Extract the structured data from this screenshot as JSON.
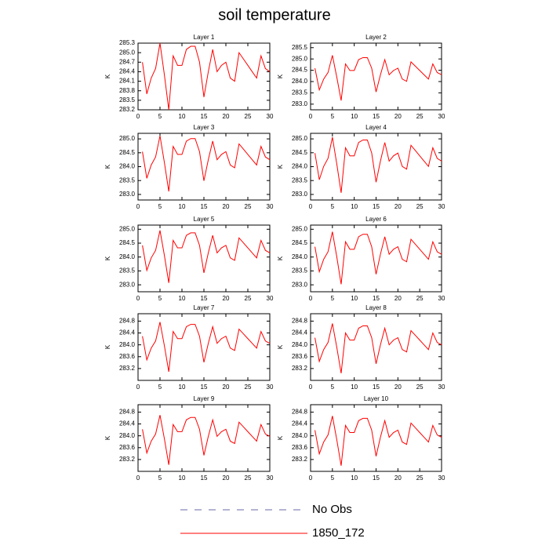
{
  "title": "soil temperature",
  "legend": [
    {
      "name": "No Obs",
      "color": "#6a6aa8",
      "dash": true
    },
    {
      "name": "1850_172",
      "color": "#ff0000",
      "dash": false
    }
  ],
  "chart_data": [
    {
      "type": "line",
      "title": "Layer 1",
      "ylabel": "K",
      "color": "#ff0000",
      "x": [
        1,
        2,
        3,
        4,
        5,
        6,
        7,
        8,
        9,
        10,
        11,
        12,
        13,
        14,
        15,
        16,
        17,
        18,
        19,
        20,
        21,
        22,
        23,
        24,
        25,
        26,
        27,
        28,
        29,
        30
      ],
      "values": [
        284.7,
        283.7,
        284.2,
        284.5,
        285.3,
        284.3,
        283.2,
        284.9,
        284.6,
        284.6,
        285.1,
        285.2,
        285.2,
        284.7,
        283.6,
        284.4,
        285.1,
        284.4,
        284.6,
        284.7,
        284.2,
        284.1,
        285.0,
        284.8,
        284.6,
        284.4,
        284.2,
        284.9,
        284.5,
        284.4
      ],
      "xlim": [
        0,
        30
      ],
      "xticks": [
        0,
        5,
        10,
        15,
        20,
        25,
        30
      ],
      "ylim": [
        283.2,
        285.3
      ],
      "yticks": [
        283.2,
        283.5,
        283.8,
        284.1,
        284.4,
        284.7,
        {
          "value": 285,
          "label": "285.0"
        },
        285.3
      ]
    },
    {
      "type": "line",
      "title": "Layer 2",
      "ylabel": "K",
      "color": "#ff0000",
      "x": [
        1,
        2,
        3,
        4,
        5,
        6,
        7,
        8,
        9,
        10,
        11,
        12,
        13,
        14,
        15,
        16,
        17,
        18,
        19,
        20,
        21,
        22,
        23,
        24,
        25,
        26,
        27,
        28,
        29,
        30
      ],
      "values": [
        284.59,
        283.63,
        284.11,
        284.4,
        285.16,
        284.2,
        283.16,
        284.78,
        284.49,
        284.49,
        284.97,
        285.06,
        285.06,
        284.59,
        283.54,
        284.3,
        284.97,
        284.3,
        284.49,
        284.59,
        284.11,
        284.01,
        284.87,
        284.68,
        284.49,
        284.3,
        284.11,
        284.78,
        284.4,
        284.3
      ],
      "xlim": [
        0,
        30
      ],
      "xticks": [
        0,
        5,
        10,
        15,
        20,
        25,
        30
      ],
      "ylim": [
        282.75,
        285.7
      ],
      "yticks": [
        {
          "value": 283,
          "label": "283.0"
        },
        283.5,
        {
          "value": 284,
          "label": "284.0"
        },
        284.5,
        {
          "value": 285,
          "label": "285.0"
        },
        285.5
      ]
    },
    {
      "type": "line",
      "title": "Layer 3",
      "ylabel": "K",
      "color": "#ff0000",
      "x": [
        1,
        2,
        3,
        4,
        5,
        6,
        7,
        8,
        9,
        10,
        11,
        12,
        13,
        14,
        15,
        16,
        17,
        18,
        19,
        20,
        21,
        22,
        23,
        24,
        25,
        26,
        27,
        28,
        29,
        30
      ],
      "values": [
        284.54,
        283.58,
        284.06,
        284.35,
        285.11,
        284.15,
        283.11,
        284.73,
        284.44,
        284.44,
        284.92,
        285.01,
        285.01,
        284.54,
        283.49,
        284.25,
        284.92,
        284.25,
        284.44,
        284.54,
        284.06,
        283.96,
        284.82,
        284.63,
        284.44,
        284.25,
        284.06,
        284.73,
        284.35,
        284.25
      ],
      "xlim": [
        0,
        30
      ],
      "xticks": [
        0,
        5,
        10,
        15,
        20,
        25,
        30
      ],
      "ylim": [
        282.8,
        285.2
      ],
      "yticks": [
        {
          "value": 283,
          "label": "283.0"
        },
        283.5,
        {
          "value": 284,
          "label": "284.0"
        },
        284.5,
        {
          "value": 285,
          "label": "285.0"
        }
      ]
    },
    {
      "type": "line",
      "title": "Layer 4",
      "ylabel": "K",
      "color": "#ff0000",
      "x": [
        1,
        2,
        3,
        4,
        5,
        6,
        7,
        8,
        9,
        10,
        11,
        12,
        13,
        14,
        15,
        16,
        17,
        18,
        19,
        20,
        21,
        22,
        23,
        24,
        25,
        26,
        27,
        28,
        29,
        30
      ],
      "values": [
        284.49,
        283.53,
        284.01,
        284.3,
        285.06,
        284.1,
        283.06,
        284.68,
        284.39,
        284.39,
        284.87,
        284.96,
        284.96,
        284.49,
        283.44,
        284.2,
        284.87,
        284.2,
        284.39,
        284.49,
        284.01,
        283.91,
        284.77,
        284.58,
        284.39,
        284.2,
        284.01,
        284.68,
        284.3,
        284.2
      ],
      "xlim": [
        0,
        30
      ],
      "xticks": [
        0,
        5,
        10,
        15,
        20,
        25,
        30
      ],
      "ylim": [
        282.8,
        285.2
      ],
      "yticks": [
        {
          "value": 283,
          "label": "283.0"
        },
        283.5,
        {
          "value": 284,
          "label": "284.0"
        },
        284.5,
        {
          "value": 285,
          "label": "285.0"
        }
      ]
    },
    {
      "type": "line",
      "title": "Layer 5",
      "ylabel": "K",
      "color": "#ff0000",
      "x": [
        1,
        2,
        3,
        4,
        5,
        6,
        7,
        8,
        9,
        10,
        11,
        12,
        13,
        14,
        15,
        16,
        17,
        18,
        19,
        20,
        21,
        22,
        23,
        24,
        25,
        26,
        27,
        28,
        29,
        30
      ],
      "values": [
        284.42,
        283.52,
        283.97,
        284.24,
        284.96,
        284.06,
        283.07,
        284.6,
        284.33,
        284.33,
        284.78,
        284.87,
        284.87,
        284.42,
        283.43,
        284.15,
        284.78,
        284.15,
        284.33,
        284.42,
        283.97,
        283.88,
        284.69,
        284.51,
        284.33,
        284.15,
        283.97,
        284.6,
        284.24,
        284.15
      ],
      "xlim": [
        0,
        30
      ],
      "xticks": [
        0,
        5,
        10,
        15,
        20,
        25,
        30
      ],
      "ylim": [
        282.75,
        285.15
      ],
      "yticks": [
        {
          "value": 283,
          "label": "283.0"
        },
        283.5,
        {
          "value": 284,
          "label": "284.0"
        },
        284.5,
        {
          "value": 285,
          "label": "285.0"
        }
      ]
    },
    {
      "type": "line",
      "title": "Layer 6",
      "ylabel": "K",
      "color": "#ff0000",
      "x": [
        1,
        2,
        3,
        4,
        5,
        6,
        7,
        8,
        9,
        10,
        11,
        12,
        13,
        14,
        15,
        16,
        17,
        18,
        19,
        20,
        21,
        22,
        23,
        24,
        25,
        26,
        27,
        28,
        29,
        30
      ],
      "values": [
        284.37,
        283.47,
        283.92,
        284.19,
        284.91,
        284.01,
        283.02,
        284.55,
        284.28,
        284.28,
        284.73,
        284.82,
        284.82,
        284.37,
        283.38,
        284.1,
        284.73,
        284.1,
        284.28,
        284.37,
        283.92,
        283.83,
        284.64,
        284.46,
        284.28,
        284.1,
        283.92,
        284.55,
        284.19,
        284.1
      ],
      "xlim": [
        0,
        30
      ],
      "xticks": [
        0,
        5,
        10,
        15,
        20,
        25,
        30
      ],
      "ylim": [
        282.75,
        285.15
      ],
      "yticks": [
        {
          "value": 283,
          "label": "283.0"
        },
        283.5,
        {
          "value": 284,
          "label": "284.0"
        },
        284.5,
        {
          "value": 285,
          "label": "285.0"
        }
      ]
    },
    {
      "type": "line",
      "title": "Layer 7",
      "ylabel": "K",
      "color": "#ff0000",
      "x": [
        1,
        2,
        3,
        4,
        5,
        6,
        7,
        8,
        9,
        10,
        11,
        12,
        13,
        14,
        15,
        16,
        17,
        18,
        19,
        20,
        21,
        22,
        23,
        24,
        25,
        26,
        27,
        28,
        29,
        30
      ],
      "values": [
        284.29,
        283.49,
        283.89,
        284.13,
        284.77,
        283.97,
        283.09,
        284.45,
        284.21,
        284.21,
        284.61,
        284.69,
        284.69,
        284.29,
        283.41,
        284.05,
        284.61,
        284.05,
        284.21,
        284.29,
        283.89,
        283.81,
        284.53,
        284.37,
        284.21,
        284.05,
        283.89,
        284.45,
        284.13,
        284.05
      ],
      "xlim": [
        0,
        30
      ],
      "xticks": [
        0,
        5,
        10,
        15,
        20,
        25,
        30
      ],
      "ylim": [
        282.8,
        285.05
      ],
      "yticks": [
        283.2,
        283.6,
        {
          "value": 284,
          "label": "284.0"
        },
        284.4,
        284.8
      ]
    },
    {
      "type": "line",
      "title": "Layer 8",
      "ylabel": "K",
      "color": "#ff0000",
      "x": [
        1,
        2,
        3,
        4,
        5,
        6,
        7,
        8,
        9,
        10,
        11,
        12,
        13,
        14,
        15,
        16,
        17,
        18,
        19,
        20,
        21,
        22,
        23,
        24,
        25,
        26,
        27,
        28,
        29,
        30
      ],
      "values": [
        284.24,
        283.44,
        283.84,
        284.08,
        284.72,
        283.92,
        283.04,
        284.4,
        284.16,
        284.16,
        284.56,
        284.64,
        284.64,
        284.24,
        283.36,
        284.0,
        284.56,
        284.0,
        284.16,
        284.24,
        283.84,
        283.76,
        284.48,
        284.32,
        284.16,
        284.0,
        283.84,
        284.4,
        284.08,
        284.0
      ],
      "xlim": [
        0,
        30
      ],
      "xticks": [
        0,
        5,
        10,
        15,
        20,
        25,
        30
      ],
      "ylim": [
        282.8,
        285.05
      ],
      "yticks": [
        283.2,
        283.6,
        {
          "value": 284,
          "label": "284.0"
        },
        284.4,
        284.8
      ]
    },
    {
      "type": "line",
      "title": "Layer 9",
      "ylabel": "K",
      "color": "#ff0000",
      "x": [
        1,
        2,
        3,
        4,
        5,
        6,
        7,
        8,
        9,
        10,
        11,
        12,
        13,
        14,
        15,
        16,
        17,
        18,
        19,
        20,
        21,
        22,
        23,
        24,
        25,
        26,
        27,
        28,
        29,
        30
      ],
      "values": [
        284.22,
        283.42,
        283.82,
        284.06,
        284.7,
        283.9,
        283.02,
        284.38,
        284.14,
        284.14,
        284.54,
        284.62,
        284.62,
        284.22,
        283.34,
        283.98,
        284.54,
        283.98,
        284.14,
        284.22,
        283.82,
        283.74,
        284.46,
        284.3,
        284.14,
        283.98,
        283.82,
        284.38,
        284.06,
        283.98
      ],
      "xlim": [
        0,
        30
      ],
      "xticks": [
        0,
        5,
        10,
        15,
        20,
        25,
        30
      ],
      "ylim": [
        282.8,
        285.05
      ],
      "yticks": [
        283.2,
        283.6,
        {
          "value": 284,
          "label": "284.0"
        },
        284.4,
        284.8
      ]
    },
    {
      "type": "line",
      "title": "Layer 10",
      "ylabel": "K",
      "color": "#ff0000",
      "x": [
        1,
        2,
        3,
        4,
        5,
        6,
        7,
        8,
        9,
        10,
        11,
        12,
        13,
        14,
        15,
        16,
        17,
        18,
        19,
        20,
        21,
        22,
        23,
        24,
        25,
        26,
        27,
        28,
        29,
        30
      ],
      "values": [
        284.19,
        283.39,
        283.79,
        284.03,
        284.67,
        283.87,
        282.99,
        284.35,
        284.11,
        284.11,
        284.51,
        284.59,
        284.59,
        284.19,
        283.31,
        283.95,
        284.51,
        283.95,
        284.11,
        284.19,
        283.79,
        283.71,
        284.43,
        284.27,
        284.11,
        283.95,
        283.79,
        284.35,
        284.03,
        283.95
      ],
      "xlim": [
        0,
        30
      ],
      "xticks": [
        0,
        5,
        10,
        15,
        20,
        25,
        30
      ],
      "ylim": [
        282.8,
        285.05
      ],
      "yticks": [
        283.2,
        283.6,
        {
          "value": 284,
          "label": "284.0"
        },
        284.4,
        284.8
      ]
    }
  ]
}
